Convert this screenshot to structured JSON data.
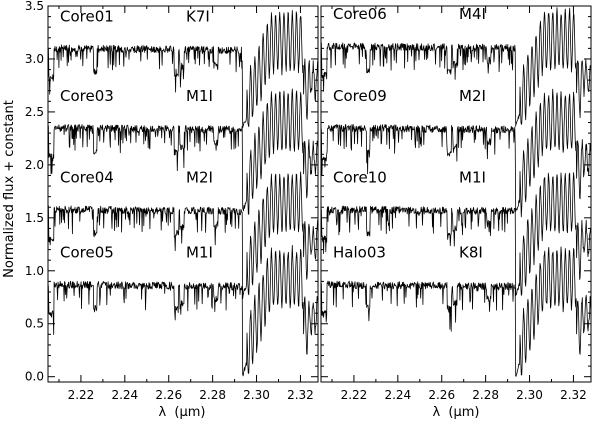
{
  "chart_data": {
    "type": "line",
    "ylabel": "Normalized flux + constant",
    "xlabel_symbol": "λ",
    "xlabel_unit": "(μm)",
    "xlim": [
      2.205,
      2.328
    ],
    "ylim": [
      -0.05,
      3.5
    ],
    "yticks": [
      0.0,
      0.5,
      1.0,
      1.5,
      2.0,
      2.5,
      3.0,
      3.5
    ],
    "ytick_labels": [
      "0.0",
      "0.5",
      "1.0",
      "1.5",
      "2.0",
      "2.5",
      "3.0",
      "3.5"
    ],
    "xticks": [
      2.22,
      2.24,
      2.26,
      2.28,
      2.3,
      2.32
    ],
    "xtick_labels": [
      "2.22",
      "2.24",
      "2.26",
      "2.28",
      "2.30",
      "2.32"
    ],
    "co_bandhead_um": 2.2935,
    "panels": [
      {
        "name": "left",
        "series": [
          {
            "name": "Core01",
            "sptype": "K7I",
            "continuum": 3.1,
            "offset": 3.0
          },
          {
            "name": "Core03",
            "sptype": "M1I",
            "continuum": 2.35,
            "offset": 2.0
          },
          {
            "name": "Core04",
            "sptype": "M2I",
            "continuum": 1.58,
            "offset": 1.5
          },
          {
            "name": "Core05",
            "sptype": "M1I",
            "continuum": 0.87,
            "offset": 0.0
          }
        ]
      },
      {
        "name": "right",
        "series": [
          {
            "name": "Core06",
            "sptype": "M4I",
            "continuum": 3.12,
            "offset": 3.0
          },
          {
            "name": "Core09",
            "sptype": "M2I",
            "continuum": 2.35,
            "offset": 2.0
          },
          {
            "name": "Core10",
            "sptype": "M1I",
            "continuum": 1.58,
            "offset": 1.5
          },
          {
            "name": "Halo03",
            "sptype": "K8I",
            "continuum": 0.87,
            "offset": 0.0
          }
        ]
      }
    ]
  }
}
